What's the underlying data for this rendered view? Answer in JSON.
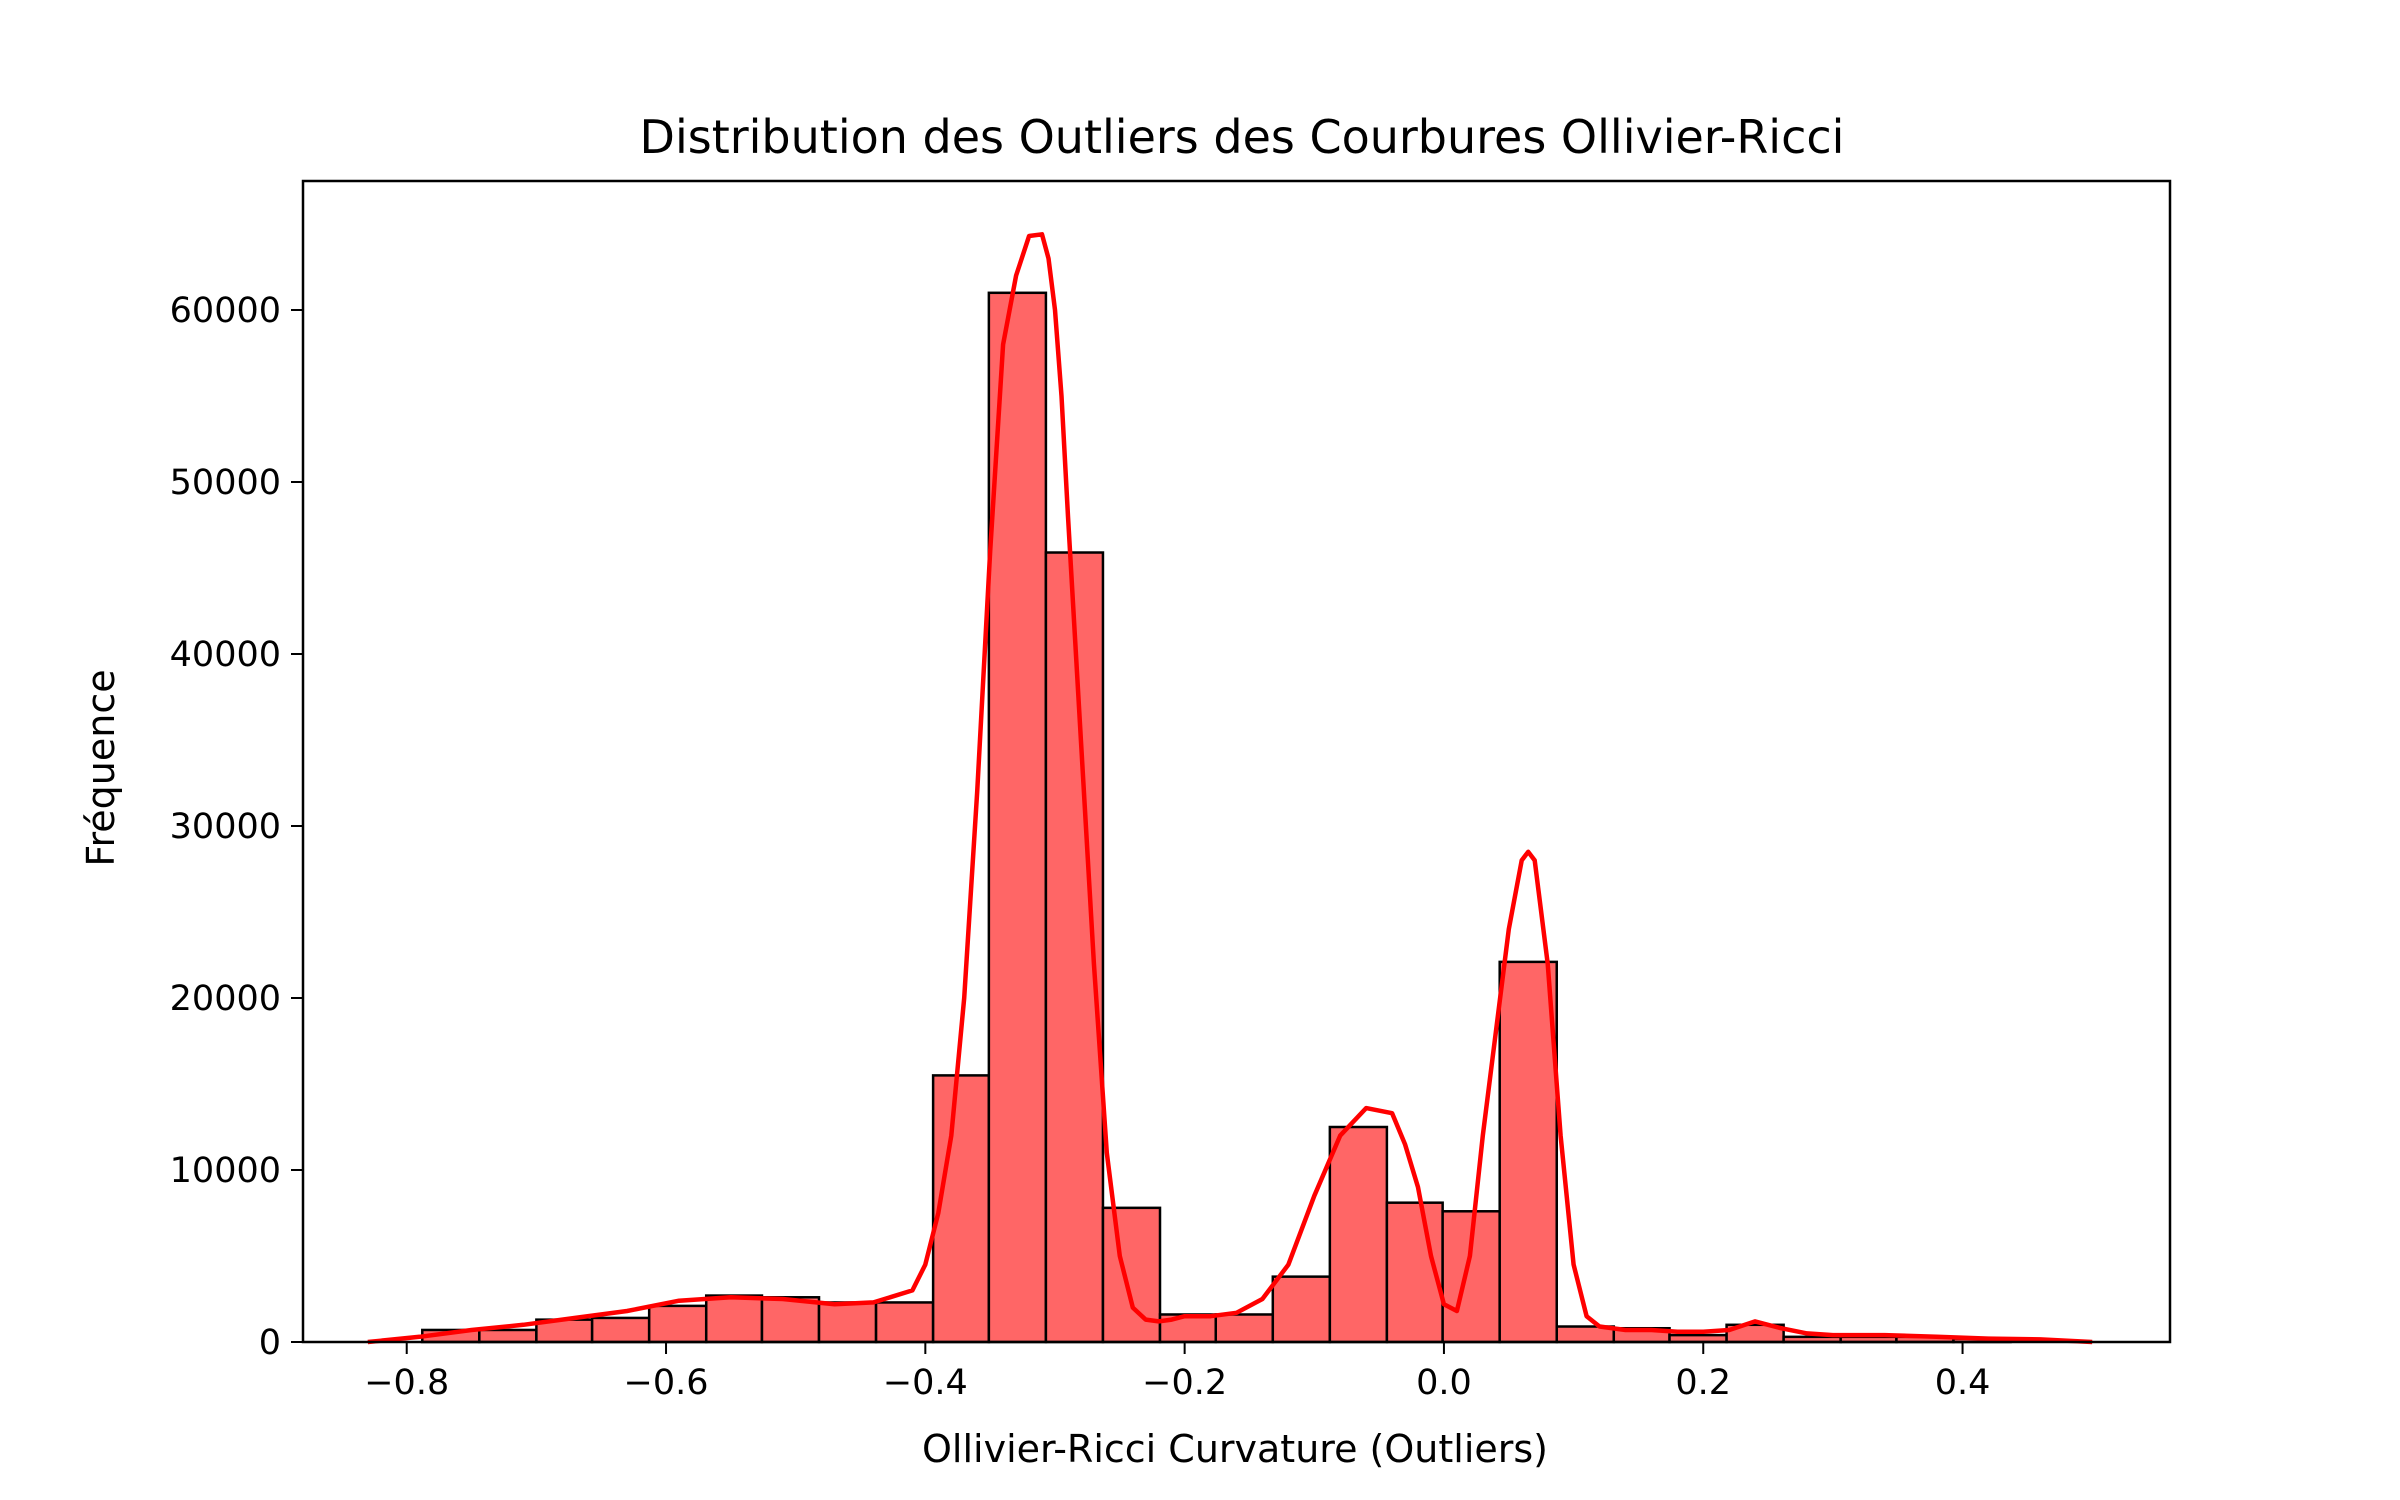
{
  "chart_data": {
    "type": "bar",
    "title": "Distribution des Outliers des Courbures Ollivier-Ricci",
    "xlabel": "Ollivier-Ricci Curvature (Outliers)",
    "ylabel": "Fréquence",
    "xlim": [
      -0.88,
      0.56
    ],
    "ylim": [
      0,
      67500
    ],
    "grid": false,
    "bin_edges": [
      -0.788,
      -0.744,
      -0.7,
      -0.657,
      -0.613,
      -0.569,
      -0.526,
      -0.482,
      -0.438,
      -0.394,
      -0.351,
      -0.307,
      -0.263,
      -0.219,
      -0.176,
      -0.132,
      -0.088,
      -0.044,
      -0.001,
      0.043,
      0.087,
      0.131,
      0.174,
      0.218,
      0.262,
      0.306,
      0.349,
      0.393,
      0.437
    ],
    "values": [
      700,
      700,
      1300,
      1400,
      2100,
      2700,
      2600,
      2300,
      2300,
      15500,
      61000,
      45900,
      7800,
      1600,
      1600,
      3800,
      12500,
      8100,
      7600,
      22100,
      900,
      800,
      400,
      1000,
      300,
      300,
      300,
      200
    ],
    "bar_color": "#ff6666",
    "bar_edge_color": "#000000",
    "kde": {
      "color": "#ff0000",
      "x": [
        -0.83,
        -0.79,
        -0.75,
        -0.71,
        -0.67,
        -0.63,
        -0.59,
        -0.55,
        -0.51,
        -0.47,
        -0.44,
        -0.41,
        -0.4,
        -0.39,
        -0.38,
        -0.37,
        -0.36,
        -0.35,
        -0.34,
        -0.33,
        -0.32,
        -0.31,
        -0.305,
        -0.3,
        -0.295,
        -0.29,
        -0.28,
        -0.27,
        -0.26,
        -0.25,
        -0.24,
        -0.23,
        -0.22,
        -0.21,
        -0.2,
        -0.18,
        -0.16,
        -0.14,
        -0.12,
        -0.1,
        -0.08,
        -0.06,
        -0.04,
        -0.03,
        -0.02,
        -0.01,
        0.0,
        0.01,
        0.02,
        0.03,
        0.04,
        0.05,
        0.06,
        0.065,
        0.07,
        0.08,
        0.09,
        0.1,
        0.11,
        0.12,
        0.14,
        0.16,
        0.18,
        0.2,
        0.22,
        0.24,
        0.26,
        0.28,
        0.3,
        0.34,
        0.38,
        0.42,
        0.46,
        0.5
      ],
      "y": [
        0,
        300,
        700,
        1000,
        1400,
        1800,
        2400,
        2600,
        2500,
        2200,
        2300,
        3000,
        4500,
        7500,
        12000,
        20000,
        32000,
        46000,
        58000,
        62000,
        64300,
        64400,
        63000,
        60000,
        55000,
        48000,
        35000,
        22000,
        11000,
        5000,
        2000,
        1300,
        1200,
        1300,
        1500,
        1500,
        1700,
        2500,
        4500,
        8500,
        12000,
        13600,
        13300,
        11500,
        9000,
        5000,
        2200,
        1800,
        5000,
        12000,
        18000,
        24000,
        28000,
        28500,
        28000,
        22000,
        12000,
        4500,
        1500,
        900,
        700,
        700,
        600,
        600,
        700,
        1200,
        800,
        500,
        400,
        400,
        300,
        200,
        150,
        0
      ]
    },
    "x_ticks": [
      {
        "value": -0.8,
        "label": "−0.8"
      },
      {
        "value": -0.6,
        "label": "−0.6"
      },
      {
        "value": -0.4,
        "label": "−0.4"
      },
      {
        "value": -0.2,
        "label": "−0.2"
      },
      {
        "value": 0.0,
        "label": "0.0"
      },
      {
        "value": 0.2,
        "label": "0.2"
      },
      {
        "value": 0.4,
        "label": "0.4"
      }
    ],
    "y_ticks": [
      {
        "value": 0,
        "label": "0"
      },
      {
        "value": 10000,
        "label": "10000"
      },
      {
        "value": 20000,
        "label": "20000"
      },
      {
        "value": 30000,
        "label": "30000"
      },
      {
        "value": 40000,
        "label": "40000"
      },
      {
        "value": 50000,
        "label": "50000"
      },
      {
        "value": 60000,
        "label": "60000"
      }
    ]
  }
}
